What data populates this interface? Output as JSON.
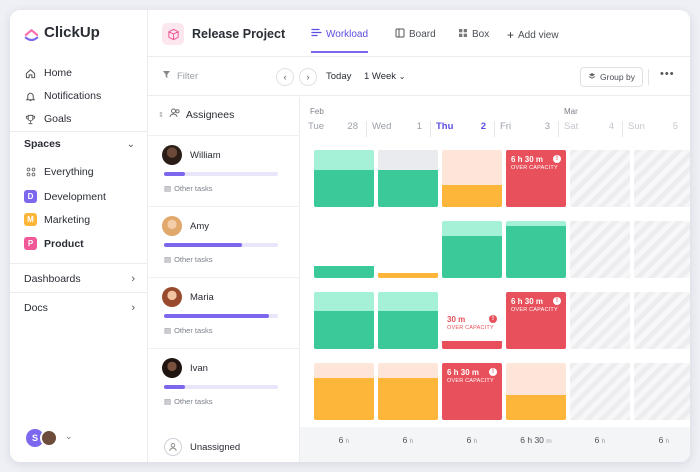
{
  "app": {
    "name": "ClickUp"
  },
  "colors": {
    "accent": "#7b68ee",
    "teal_light": "#a5f1d8",
    "teal": "#3cc99a",
    "orange_light": "#fde6d9",
    "orange": "#fdb53a",
    "red": "#e8505b",
    "red_light": "#f7c3c8"
  },
  "sidebar": {
    "nav": [
      {
        "label": "Home",
        "icon": "home-icon"
      },
      {
        "label": "Notifications",
        "icon": "bell-icon"
      },
      {
        "label": "Goals",
        "icon": "trophy-icon"
      }
    ],
    "spaces_title": "Spaces",
    "spaces": [
      {
        "label": "Everything",
        "badge": "",
        "color": ""
      },
      {
        "label": "Development",
        "badge": "D",
        "color": "#7b68ee"
      },
      {
        "label": "Marketing",
        "badge": "M",
        "color": "#fdb53a"
      },
      {
        "label": "Product",
        "badge": "P",
        "color": "#f05896"
      }
    ],
    "dashboards": "Dashboards",
    "docs": "Docs",
    "user_initial": "S"
  },
  "header": {
    "project_title": "Release Project",
    "views": [
      "Workload",
      "Board",
      "Box"
    ],
    "add_view": "Add view"
  },
  "toolbar": {
    "filter_placeholder": "Filter",
    "today": "Today",
    "range": "1 Week",
    "group_by": "Group by"
  },
  "assignees": {
    "title": "Assignees",
    "other_tasks": "Other tasks",
    "unassigned": "Unassigned",
    "people": [
      {
        "name": "William",
        "progress": 0.18,
        "avatar_color": "#3a2a22"
      },
      {
        "name": "Amy",
        "progress": 0.68,
        "avatar_color": "#e9b98a"
      },
      {
        "name": "Maria",
        "progress": 0.92,
        "avatar_color": "#b5643b"
      },
      {
        "name": "Ivan",
        "progress": 0.18,
        "avatar_color": "#2b1d17"
      }
    ]
  },
  "calendar": {
    "months": [
      "Feb",
      "Mar"
    ],
    "days": [
      {
        "name": "Tue",
        "date": "28"
      },
      {
        "name": "Wed",
        "date": "1"
      },
      {
        "name": "Thu",
        "date": "2"
      },
      {
        "name": "Fri",
        "date": "3"
      },
      {
        "name": "Sat",
        "date": "4"
      },
      {
        "name": "Sun",
        "date": "5"
      }
    ],
    "over_capacity": "OVER CAPACITY",
    "over_labels": {
      "william_fri": "6 h 30 m",
      "maria_thu": "30 m",
      "maria_fri": "6 h 30 m",
      "ivan_thu": "6 h 30 m"
    },
    "totals": [
      {
        "value": "6",
        "unit": "h"
      },
      {
        "value": "6",
        "unit": "h"
      },
      {
        "value": "6",
        "unit": "h"
      },
      {
        "value": "6 h 30",
        "unit": "m"
      },
      {
        "value": "6",
        "unit": "h"
      },
      {
        "value": "6",
        "unit": "h"
      }
    ]
  }
}
